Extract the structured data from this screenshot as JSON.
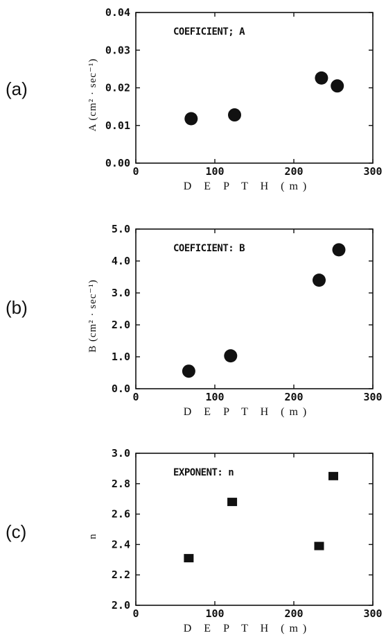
{
  "chart_data": [
    {
      "type": "scatter",
      "panel_label": "(a)",
      "annotation": "COEFICIENT; A",
      "xlabel": "D E P T H  (m)",
      "ylabel": "A  (cm² · sec⁻¹)",
      "xlim": [
        0,
        300
      ],
      "ylim": [
        0.0,
        0.04
      ],
      "xticks": [
        0,
        100,
        200,
        300
      ],
      "xtick_labels": [
        "0",
        "100",
        "200",
        "300"
      ],
      "yticks": [
        0.0,
        0.01,
        0.02,
        0.03,
        0.04
      ],
      "ytick_labels": [
        "0.00",
        "0.01",
        "0.02",
        "0.03",
        "0.04"
      ],
      "marker": "circle",
      "x": [
        70,
        125,
        235,
        255
      ],
      "y": [
        0.0118,
        0.0128,
        0.0226,
        0.0205
      ]
    },
    {
      "type": "scatter",
      "panel_label": "(b)",
      "annotation": "COEFICIENT: B",
      "xlabel": "D E P T H  (m)",
      "ylabel": "B  (cm² · sec⁻¹)",
      "xlim": [
        0,
        300
      ],
      "ylim": [
        0.0,
        5.0
      ],
      "xticks": [
        0,
        100,
        200,
        300
      ],
      "xtick_labels": [
        "0",
        "100",
        "200",
        "300"
      ],
      "yticks": [
        0.0,
        1.0,
        2.0,
        3.0,
        4.0,
        5.0
      ],
      "ytick_labels": [
        "0.0",
        "1.0",
        "2.0",
        "3.0",
        "4.0",
        "5.0"
      ],
      "marker": "circle",
      "x": [
        67,
        120,
        232,
        257
      ],
      "y": [
        0.55,
        1.03,
        3.4,
        4.35
      ]
    },
    {
      "type": "scatter",
      "panel_label": "(c)",
      "annotation": "EXPONENT: n",
      "xlabel": "D E P T H  (m)",
      "ylabel": "n",
      "xlim": [
        0,
        300
      ],
      "ylim": [
        2.0,
        3.0
      ],
      "xticks": [
        0,
        100,
        200,
        300
      ],
      "xtick_labels": [
        "0",
        "100",
        "200",
        "300"
      ],
      "yticks": [
        2.0,
        2.2,
        2.4,
        2.6,
        2.8,
        3.0
      ],
      "ytick_labels": [
        "2.0",
        "2.2",
        "2.4",
        "2.6",
        "2.8",
        "3.0"
      ],
      "marker": "square",
      "x": [
        67,
        122,
        232,
        250
      ],
      "y": [
        2.31,
        2.68,
        2.39,
        2.85
      ]
    }
  ]
}
